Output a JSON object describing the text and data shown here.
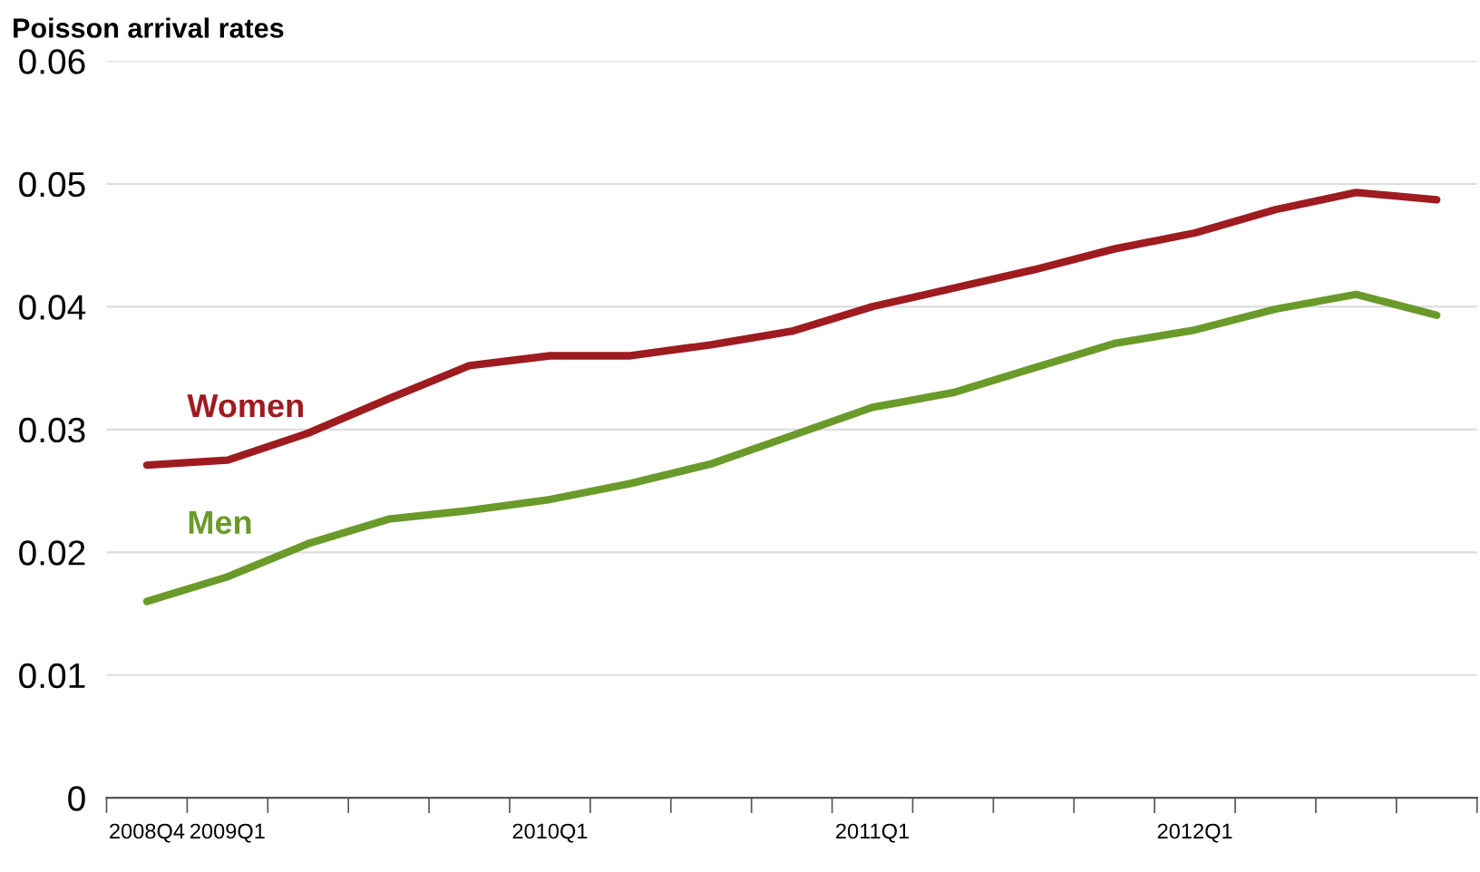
{
  "chart_data": {
    "type": "line",
    "title": "Poisson arrival rates",
    "categories": [
      "2008Q4",
      "2009Q1",
      null,
      null,
      null,
      "2010Q1",
      null,
      null,
      null,
      "2011Q1",
      null,
      null,
      null,
      "2012Q1",
      null,
      null,
      null
    ],
    "series": [
      {
        "name": "Women",
        "color": "#9e1b20",
        "values": [
          0.0271,
          0.0275,
          0.0297,
          0.0325,
          0.0352,
          0.036,
          0.036,
          0.0369,
          0.038,
          0.04,
          0.0415,
          0.043,
          0.0447,
          0.046,
          0.0479,
          0.0493,
          0.0487
        ]
      },
      {
        "name": "Men",
        "color": "#6a9a2a",
        "values": [
          0.016,
          0.018,
          0.0207,
          0.0227,
          0.0234,
          0.0243,
          0.0256,
          0.0272,
          0.0295,
          0.0318,
          0.033,
          0.035,
          0.037,
          0.0381,
          0.0398,
          0.041,
          0.0393
        ]
      }
    ],
    "ylim": [
      0,
      0.06
    ],
    "yticks": [
      {
        "value": 0,
        "label": "0"
      },
      0.01,
      0.02,
      0.03,
      0.04,
      0.05,
      0.06
    ],
    "grid": "y",
    "legend": false,
    "marker": "none",
    "line_style": "solid"
  }
}
